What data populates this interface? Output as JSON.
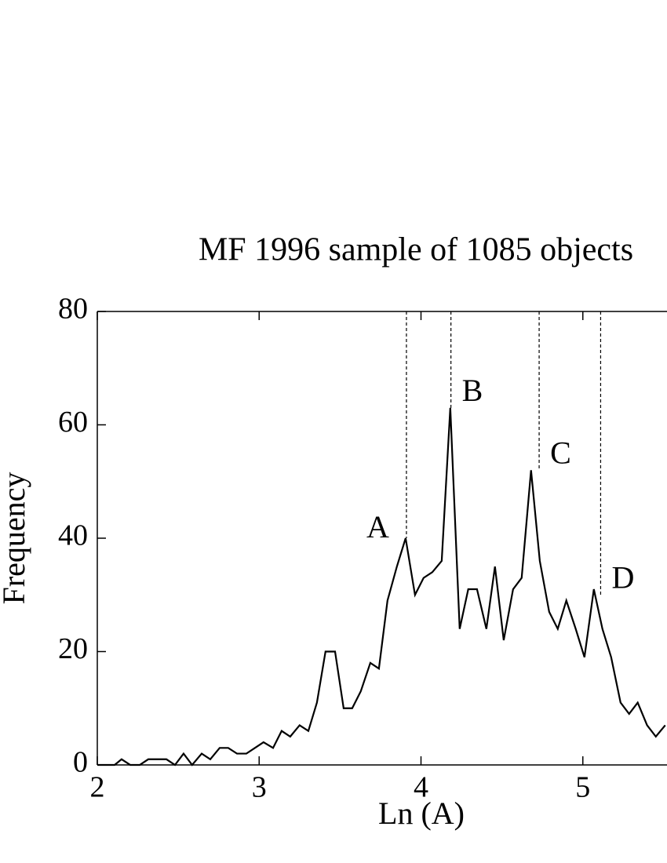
{
  "chart_data": {
    "type": "line",
    "title": "MF 1996 sample of  1085 objects",
    "x_label": "Ln (A)",
    "y_label": "Frequency",
    "color": "#000000",
    "xlim": [
      2,
      5.52
    ],
    "ylim": [
      0,
      80
    ],
    "xticks": [
      2,
      3,
      4,
      5
    ],
    "yticks": [
      0,
      20,
      40,
      60,
      80
    ],
    "x": [
      2.0,
      2.053,
      2.107,
      2.15,
      2.204,
      2.262,
      2.315,
      2.368,
      2.427,
      2.48,
      2.533,
      2.586,
      2.645,
      2.698,
      2.756,
      2.809,
      2.863,
      2.921,
      2.974,
      3.027,
      3.086,
      3.139,
      3.192,
      3.25,
      3.304,
      3.357,
      3.41,
      3.469,
      3.522,
      3.575,
      3.628,
      3.687,
      3.74,
      3.793,
      3.851,
      3.905,
      3.963,
      4.016,
      4.07,
      4.128,
      4.181,
      4.239,
      4.292,
      4.346,
      4.404,
      4.457,
      4.511,
      4.569,
      4.622,
      4.68,
      4.734,
      4.792,
      4.845,
      4.898,
      4.956,
      5.01,
      5.068,
      5.121,
      5.175,
      5.233,
      5.286,
      5.339,
      5.397,
      5.451,
      5.509
    ],
    "values": [
      0,
      0,
      0,
      1,
      0,
      0,
      1,
      1,
      1,
      0,
      2,
      0,
      2,
      1,
      3,
      3,
      2,
      2,
      3,
      4,
      3,
      6,
      5,
      7,
      6,
      11,
      20,
      20,
      10,
      10,
      13,
      18,
      17,
      29,
      35,
      40,
      30,
      33,
      34,
      36,
      63,
      24,
      31,
      31,
      24,
      35,
      22,
      31,
      33,
      52,
      36,
      27,
      24,
      29,
      24,
      19,
      31,
      24,
      19,
      11,
      9,
      11,
      7,
      5,
      7
    ],
    "annotations": [
      {
        "label": "A",
        "x": 3.91,
        "y": 40,
        "label_side": "left"
      },
      {
        "label": "B",
        "x": 4.185,
        "y": 63,
        "label_side": "right"
      },
      {
        "label": "C",
        "x": 4.73,
        "y": 52,
        "label_side": "right"
      },
      {
        "label": "D",
        "x": 5.11,
        "y": 30,
        "label_side": "right"
      }
    ]
  }
}
